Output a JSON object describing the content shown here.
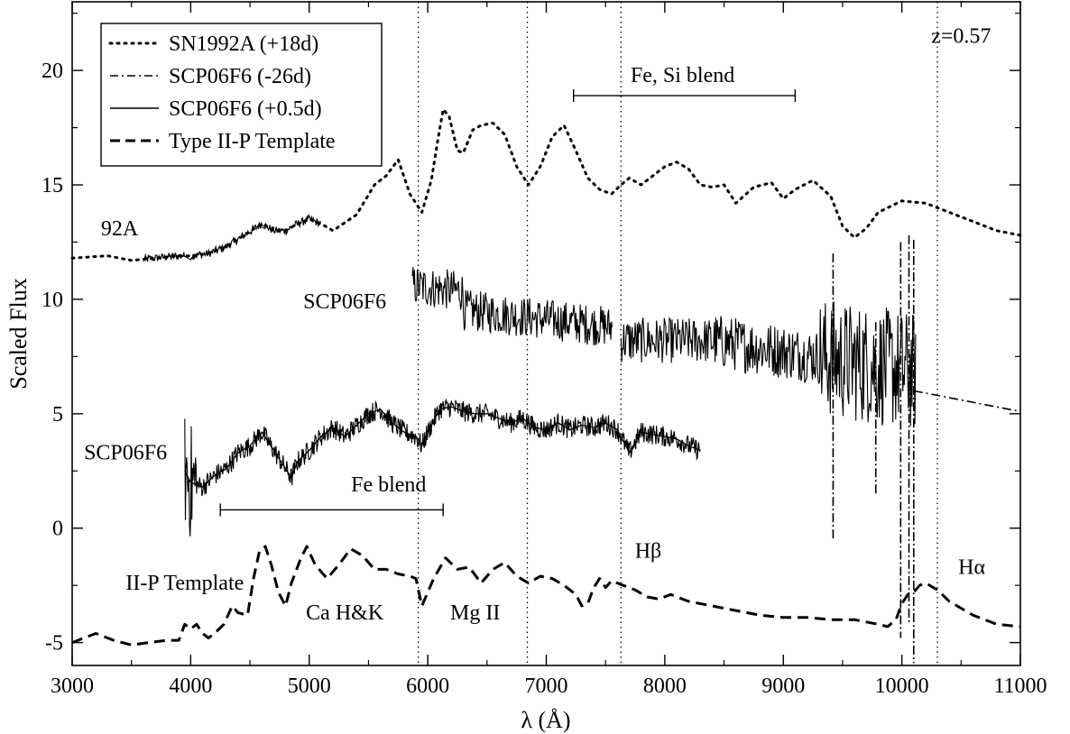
{
  "chart_data": {
    "type": "line",
    "xlabel": "λ (Å)",
    "ylabel": "Scaled Flux",
    "xlim": [
      3000,
      11000
    ],
    "ylim": [
      -6,
      23
    ],
    "xticks": [
      3000,
      4000,
      5000,
      6000,
      7000,
      8000,
      9000,
      10000,
      11000
    ],
    "yticks": [
      -5,
      0,
      5,
      10,
      15,
      20
    ],
    "grid": false,
    "legend": {
      "position": "top-left",
      "entries": [
        {
          "label": "SN1992A (+18d)",
          "style": "dotted"
        },
        {
          "label": "SCP06F6 (-26d)",
          "style": "dashdot"
        },
        {
          "label": "SCP06F6 (+0.5d)",
          "style": "solid"
        },
        {
          "label": "Type II-P Template",
          "style": "dashed"
        }
      ]
    },
    "vlines": [
      5920,
      6840,
      7630,
      10300
    ],
    "annotations": [
      {
        "text": "z=0.57",
        "x": 10500,
        "y": 21.2
      },
      {
        "text": "Fe, Si blend",
        "x": 8150,
        "y": 19.5
      },
      {
        "text": "92A",
        "x": 3400,
        "y": 12.8
      },
      {
        "text": "SCP06F6",
        "x": 5300,
        "y": 9.6
      },
      {
        "text": "SCP06F6",
        "x": 3450,
        "y": 3.0
      },
      {
        "text": "Fe blend",
        "x": 5670,
        "y": 1.6
      },
      {
        "text": "II-P Template",
        "x": 3950,
        "y": -2.7
      },
      {
        "text": "Ca H&K",
        "x": 5300,
        "y": -4.0
      },
      {
        "text": "Mg II",
        "x": 6400,
        "y": -4.0
      },
      {
        "text": "Hβ",
        "x": 7860,
        "y": -1.3
      },
      {
        "text": "Hα",
        "x": 10590,
        "y": -2.0
      }
    ],
    "brackets": [
      {
        "label": "Fe, Si blend",
        "x1": 7230,
        "x2": 9100,
        "y": 18.9
      },
      {
        "label": "Fe blend",
        "x1": 4250,
        "x2": 6130,
        "y": 0.8
      }
    ],
    "series": [
      {
        "name": "SN1992A (+18d)",
        "style": "dotted",
        "x": [
          3000,
          3300,
          3500,
          3700,
          3900,
          4000,
          4150,
          4300,
          4450,
          4600,
          4700,
          4800,
          4900,
          5000,
          5100,
          5200,
          5400,
          5550,
          5650,
          5750,
          5850,
          5950,
          6030,
          6080,
          6130,
          6180,
          6250,
          6300,
          6380,
          6450,
          6550,
          6650,
          6750,
          6850,
          6950,
          7050,
          7150,
          7250,
          7350,
          7450,
          7550,
          7630,
          7700,
          7800,
          7900,
          8000,
          8100,
          8200,
          8300,
          8400,
          8500,
          8600,
          8750,
          8900,
          9000,
          9100,
          9250,
          9400,
          9500,
          9600,
          9700,
          9800,
          10000,
          10200,
          10400,
          10600,
          10800,
          11000
        ],
        "y": [
          11.8,
          11.9,
          11.7,
          11.8,
          11.9,
          11.9,
          12.0,
          12.3,
          12.8,
          13.3,
          13.0,
          13.0,
          13.3,
          13.5,
          13.3,
          13.0,
          13.7,
          15.0,
          15.4,
          16.1,
          14.6,
          13.8,
          15.2,
          16.8,
          18.3,
          18.0,
          16.5,
          16.4,
          17.4,
          17.6,
          17.7,
          17.2,
          15.8,
          15.0,
          15.8,
          17.1,
          17.6,
          16.5,
          15.3,
          14.8,
          14.6,
          15.0,
          15.3,
          15.0,
          15.4,
          15.8,
          16.0,
          15.7,
          15.0,
          14.9,
          15.0,
          14.2,
          14.9,
          15.1,
          14.4,
          14.8,
          15.2,
          14.5,
          13.2,
          12.7,
          13.1,
          13.8,
          14.3,
          14.2,
          13.8,
          13.4,
          13.0,
          12.8
        ]
      },
      {
        "name": "SCP06F6 (-26d)",
        "style": "dashdot",
        "x": [
          10100,
          10300,
          10500,
          10700,
          10900,
          11000
        ],
        "y": [
          6.0,
          5.8,
          5.6,
          5.4,
          5.2,
          5.1
        ]
      },
      {
        "name": "SCP06F6 (+0.5d)",
        "style": "solid",
        "x": [
          3950,
          4000,
          4100,
          4200,
          4300,
          4400,
          4500,
          4600,
          4700,
          4800,
          4850,
          4900,
          5000,
          5100,
          5200,
          5300,
          5400,
          5500,
          5600,
          5700,
          5800,
          5900,
          5950,
          6000,
          6100,
          6200,
          6300,
          6400,
          6500,
          6600,
          6700,
          6800,
          6900,
          7000,
          7100,
          7200,
          7300,
          7400,
          7500,
          7600,
          7700,
          7800,
          7900,
          8000,
          8100,
          8200,
          8300
        ],
        "y": [
          2.5,
          2.0,
          1.8,
          2.3,
          2.6,
          3.3,
          3.6,
          4.2,
          3.4,
          2.6,
          2.2,
          2.9,
          3.4,
          4.0,
          4.4,
          4.0,
          4.5,
          5.0,
          5.2,
          4.6,
          4.2,
          4.0,
          3.6,
          4.2,
          5.2,
          5.3,
          5.1,
          5.0,
          5.0,
          4.8,
          4.6,
          4.8,
          4.4,
          4.3,
          4.6,
          4.3,
          4.5,
          4.4,
          4.6,
          4.3,
          3.3,
          4.2,
          4.1,
          4.0,
          3.9,
          3.6,
          3.4
        ]
      },
      {
        "name": "Type II-P Template",
        "style": "dashed",
        "x": [
          3000,
          3100,
          3200,
          3350,
          3500,
          3650,
          3800,
          3900,
          3950,
          4000,
          4050,
          4100,
          4150,
          4200,
          4280,
          4350,
          4400,
          4480,
          4530,
          4580,
          4630,
          4680,
          4740,
          4800,
          4850,
          4930,
          4980,
          5050,
          5150,
          5250,
          5350,
          5450,
          5550,
          5650,
          5750,
          5850,
          5900,
          5950,
          6050,
          6150,
          6250,
          6350,
          6450,
          6550,
          6650,
          6750,
          6850,
          6950,
          7050,
          7150,
          7250,
          7300,
          7350,
          7400,
          7450,
          7500,
          7550,
          7600,
          7650,
          7750,
          7850,
          7950,
          8050,
          8200,
          8400,
          8600,
          8800,
          9000,
          9200,
          9400,
          9600,
          9700,
          9800,
          9880,
          9950,
          10000,
          10050,
          10100,
          10150,
          10200,
          10300,
          10400,
          10600,
          10800,
          11000
        ],
        "y": [
          -5.0,
          -4.8,
          -4.6,
          -4.9,
          -5.1,
          -5.0,
          -4.9,
          -4.9,
          -4.2,
          -4.4,
          -4.2,
          -4.6,
          -4.8,
          -4.6,
          -4.2,
          -3.4,
          -3.7,
          -3.8,
          -2.2,
          -1.0,
          -0.8,
          -1.6,
          -2.8,
          -3.4,
          -2.4,
          -1.3,
          -0.8,
          -1.6,
          -2.2,
          -1.6,
          -0.9,
          -1.2,
          -1.8,
          -1.8,
          -2.0,
          -2.1,
          -2.2,
          -3.4,
          -2.2,
          -1.3,
          -1.8,
          -1.7,
          -2.4,
          -1.8,
          -1.5,
          -2.1,
          -2.4,
          -2.1,
          -2.2,
          -2.5,
          -2.9,
          -3.4,
          -3.3,
          -2.6,
          -2.2,
          -2.6,
          -2.3,
          -2.4,
          -2.5,
          -2.7,
          -3.0,
          -3.1,
          -2.9,
          -3.2,
          -3.4,
          -3.6,
          -3.8,
          -3.9,
          -3.9,
          -4.0,
          -4.0,
          -4.1,
          -4.2,
          -4.3,
          -4.0,
          -3.3,
          -2.9,
          -2.8,
          -2.5,
          -2.4,
          -2.7,
          -3.2,
          -3.8,
          -4.2,
          -4.3
        ]
      }
    ]
  },
  "decor": {
    "noisy_segments": [
      {
        "x1": 3600,
        "x2": 5100,
        "noise": 0.18
      },
      {
        "x1": 5870,
        "x2": 7560,
        "noise": 0.9
      },
      {
        "x1": 7630,
        "x2": 8400,
        "noise": 1.0
      },
      {
        "x1": 8400,
        "x2": 10120,
        "noise": 1.2
      }
    ]
  }
}
